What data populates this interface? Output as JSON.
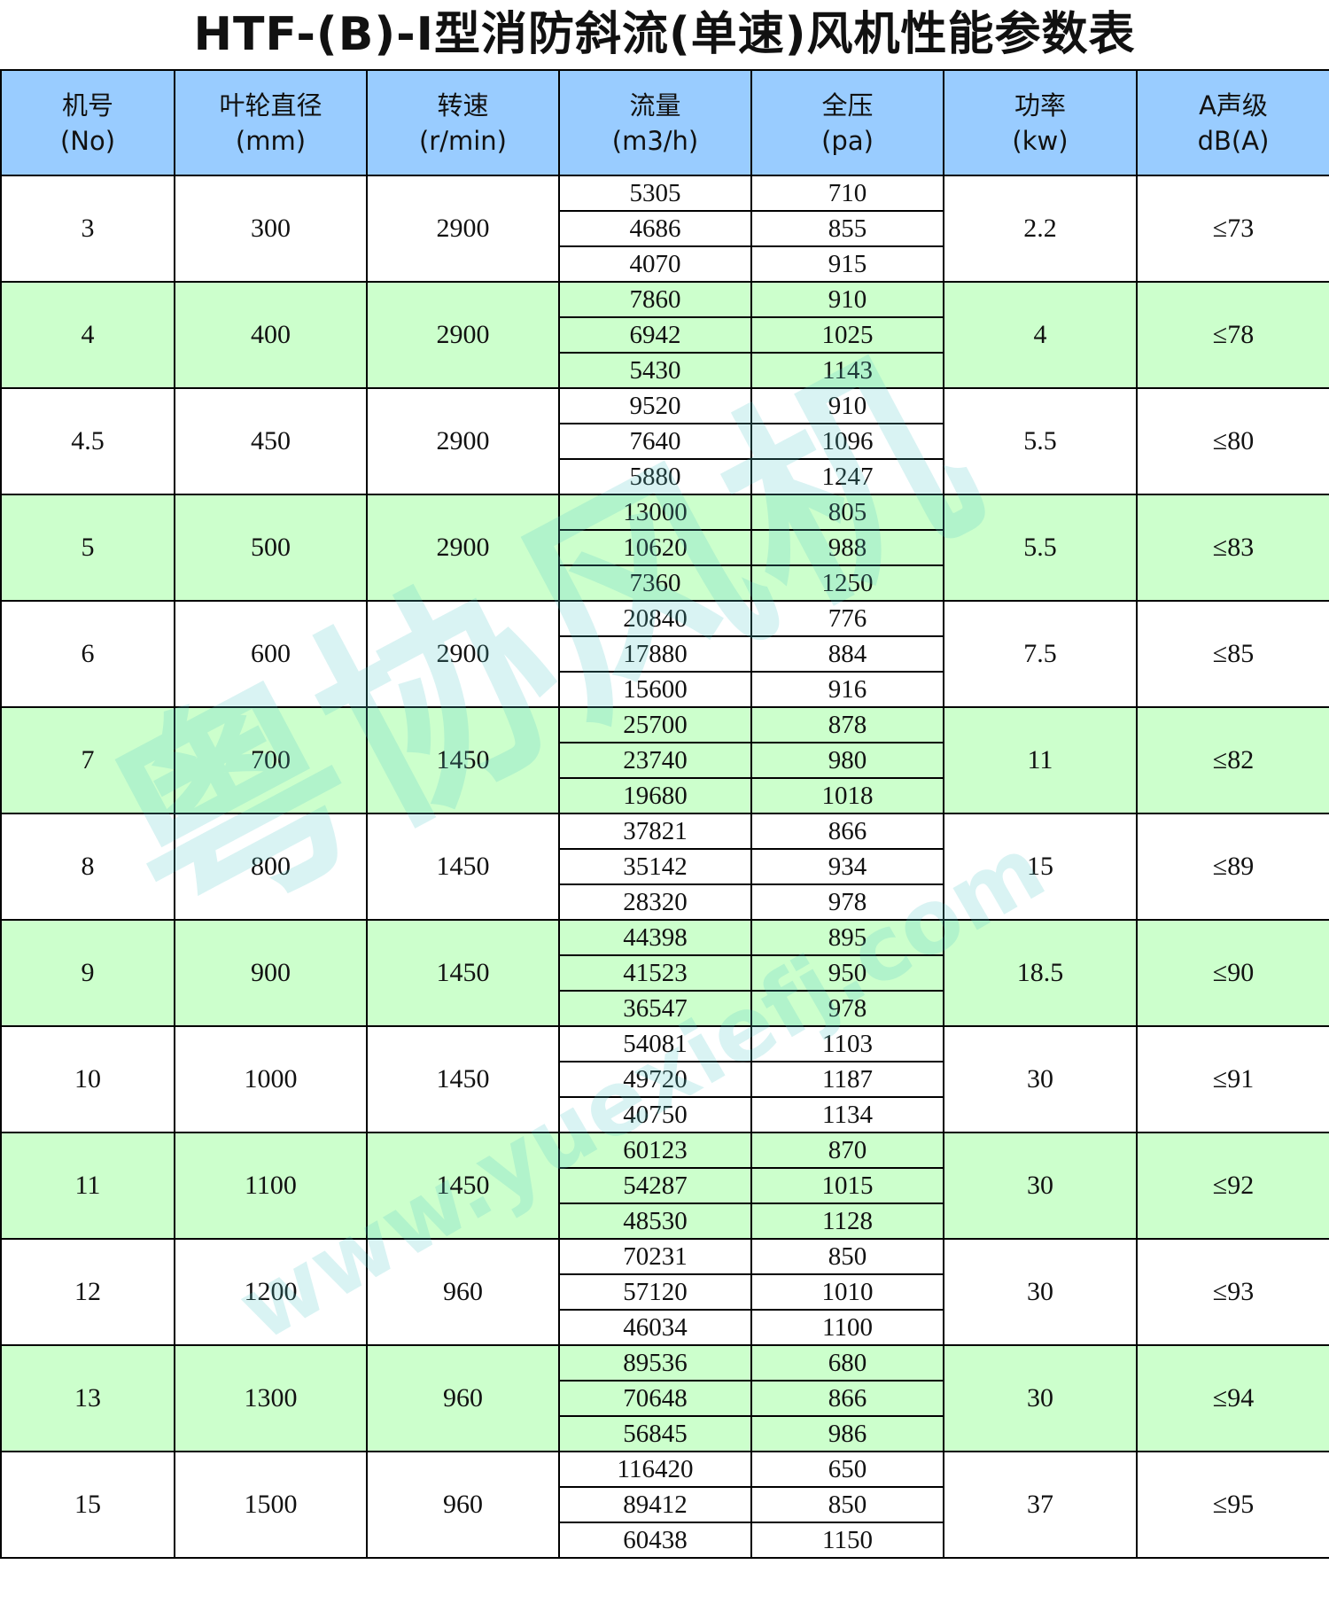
{
  "title": "HTF-(B)-I型消防斜流(单速)风机性能参数表",
  "colors": {
    "header_bg": "#99ccff",
    "alt_row_bg": "#ccffcc",
    "watermark": "#50c8c8"
  },
  "watermark": {
    "logo": "粤协风机",
    "url": "www.yuexiefj.com"
  },
  "columns": [
    {
      "name": "机号",
      "unit": "(No)"
    },
    {
      "name": "叶轮直径",
      "unit": "(mm)"
    },
    {
      "name": "转速",
      "unit": "(r/min)"
    },
    {
      "name": "流量",
      "unit": "(m3/h)"
    },
    {
      "name": "全压",
      "unit": "(pa)"
    },
    {
      "name": "功率",
      "unit": "(kw)"
    },
    {
      "name": "A声级",
      "unit": "dB(A)"
    }
  ],
  "rows": [
    {
      "no": "3",
      "diameter": "300",
      "speed": "2900",
      "flow": [
        "5305",
        "4686",
        "4070"
      ],
      "pressure": [
        "710",
        "855",
        "915"
      ],
      "power": "2.2",
      "noise": "≤73"
    },
    {
      "no": "4",
      "diameter": "400",
      "speed": "2900",
      "flow": [
        "7860",
        "6942",
        "5430"
      ],
      "pressure": [
        "910",
        "1025",
        "1143"
      ],
      "power": "4",
      "noise": "≤78"
    },
    {
      "no": "4.5",
      "diameter": "450",
      "speed": "2900",
      "flow": [
        "9520",
        "7640",
        "5880"
      ],
      "pressure": [
        "910",
        "1096",
        "1247"
      ],
      "power": "5.5",
      "noise": "≤80"
    },
    {
      "no": "5",
      "diameter": "500",
      "speed": "2900",
      "flow": [
        "13000",
        "10620",
        "7360"
      ],
      "pressure": [
        "805",
        "988",
        "1250"
      ],
      "power": "5.5",
      "noise": "≤83"
    },
    {
      "no": "6",
      "diameter": "600",
      "speed": "2900",
      "flow": [
        "20840",
        "17880",
        "15600"
      ],
      "pressure": [
        "776",
        "884",
        "916"
      ],
      "power": "7.5",
      "noise": "≤85"
    },
    {
      "no": "7",
      "diameter": "700",
      "speed": "1450",
      "flow": [
        "25700",
        "23740",
        "19680"
      ],
      "pressure": [
        "878",
        "980",
        "1018"
      ],
      "power": "11",
      "noise": "≤82"
    },
    {
      "no": "8",
      "diameter": "800",
      "speed": "1450",
      "flow": [
        "37821",
        "35142",
        "28320"
      ],
      "pressure": [
        "866",
        "934",
        "978"
      ],
      "power": "15",
      "noise": "≤89"
    },
    {
      "no": "9",
      "diameter": "900",
      "speed": "1450",
      "flow": [
        "44398",
        "41523",
        "36547"
      ],
      "pressure": [
        "895",
        "950",
        "978"
      ],
      "power": "18.5",
      "noise": "≤90"
    },
    {
      "no": "10",
      "diameter": "1000",
      "speed": "1450",
      "flow": [
        "54081",
        "49720",
        "40750"
      ],
      "pressure": [
        "1103",
        "1187",
        "1134"
      ],
      "power": "30",
      "noise": "≤91"
    },
    {
      "no": "11",
      "diameter": "1100",
      "speed": "1450",
      "flow": [
        "60123",
        "54287",
        "48530"
      ],
      "pressure": [
        "870",
        "1015",
        "1128"
      ],
      "power": "30",
      "noise": "≤92"
    },
    {
      "no": "12",
      "diameter": "1200",
      "speed": "960",
      "flow": [
        "70231",
        "57120",
        "46034"
      ],
      "pressure": [
        "850",
        "1010",
        "1100"
      ],
      "power": "30",
      "noise": "≤93"
    },
    {
      "no": "13",
      "diameter": "1300",
      "speed": "960",
      "flow": [
        "89536",
        "70648",
        "56845"
      ],
      "pressure": [
        "680",
        "866",
        "986"
      ],
      "power": "30",
      "noise": "≤94"
    },
    {
      "no": "15",
      "diameter": "1500",
      "speed": "960",
      "flow": [
        "116420",
        "89412",
        "60438"
      ],
      "pressure": [
        "650",
        "850",
        "1150"
      ],
      "power": "37",
      "noise": "≤95"
    }
  ]
}
